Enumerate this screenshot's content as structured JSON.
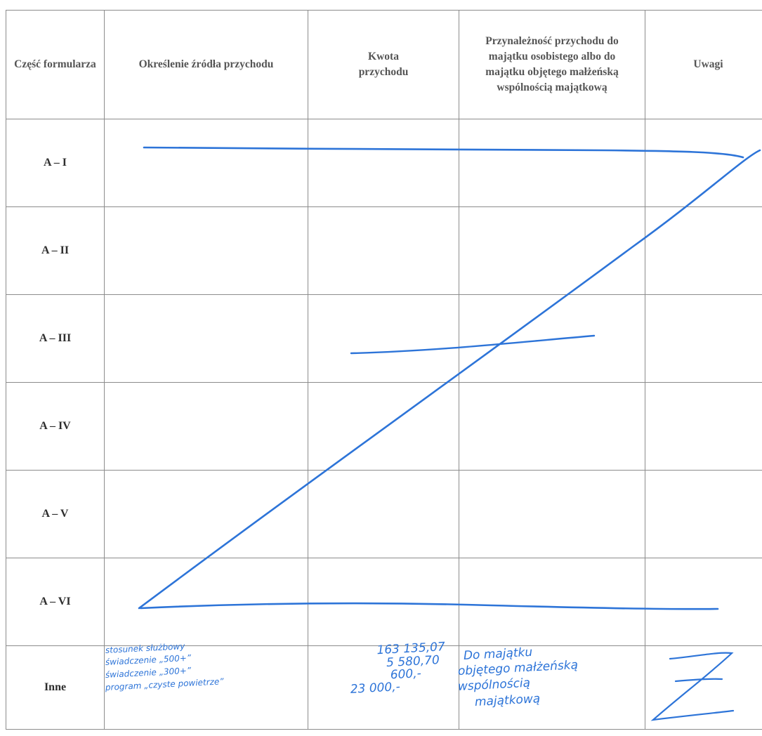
{
  "headers": [
    "Część formularza",
    "Określenie źródła przychodu",
    "Kwota przychodu",
    "Przynależność przychodu do majątku osobistego albo do majątku objętego małżeńską wspólnością majątkową",
    "Uwagi"
  ],
  "rows": [
    "A – I",
    "A – II",
    "A – III",
    "A – IV",
    "A – V",
    "A – VI",
    "Inne"
  ],
  "inne": {
    "source_lines": [
      "stosunek służbowy",
      "świadczenie „500+”",
      "świadczenie „300+”",
      "program „czyste powietrze”"
    ],
    "amount_lines": [
      "163 135,07",
      "5 580,70",
      "600,-",
      "23 000,-"
    ],
    "property_lines": [
      "Do majątku",
      "objętego małżeńską",
      "wspólnością",
      "majątkową"
    ]
  },
  "colors": {
    "ink": "#2d74d8",
    "grid": "#8c8c8c",
    "header_text": "#555555"
  }
}
